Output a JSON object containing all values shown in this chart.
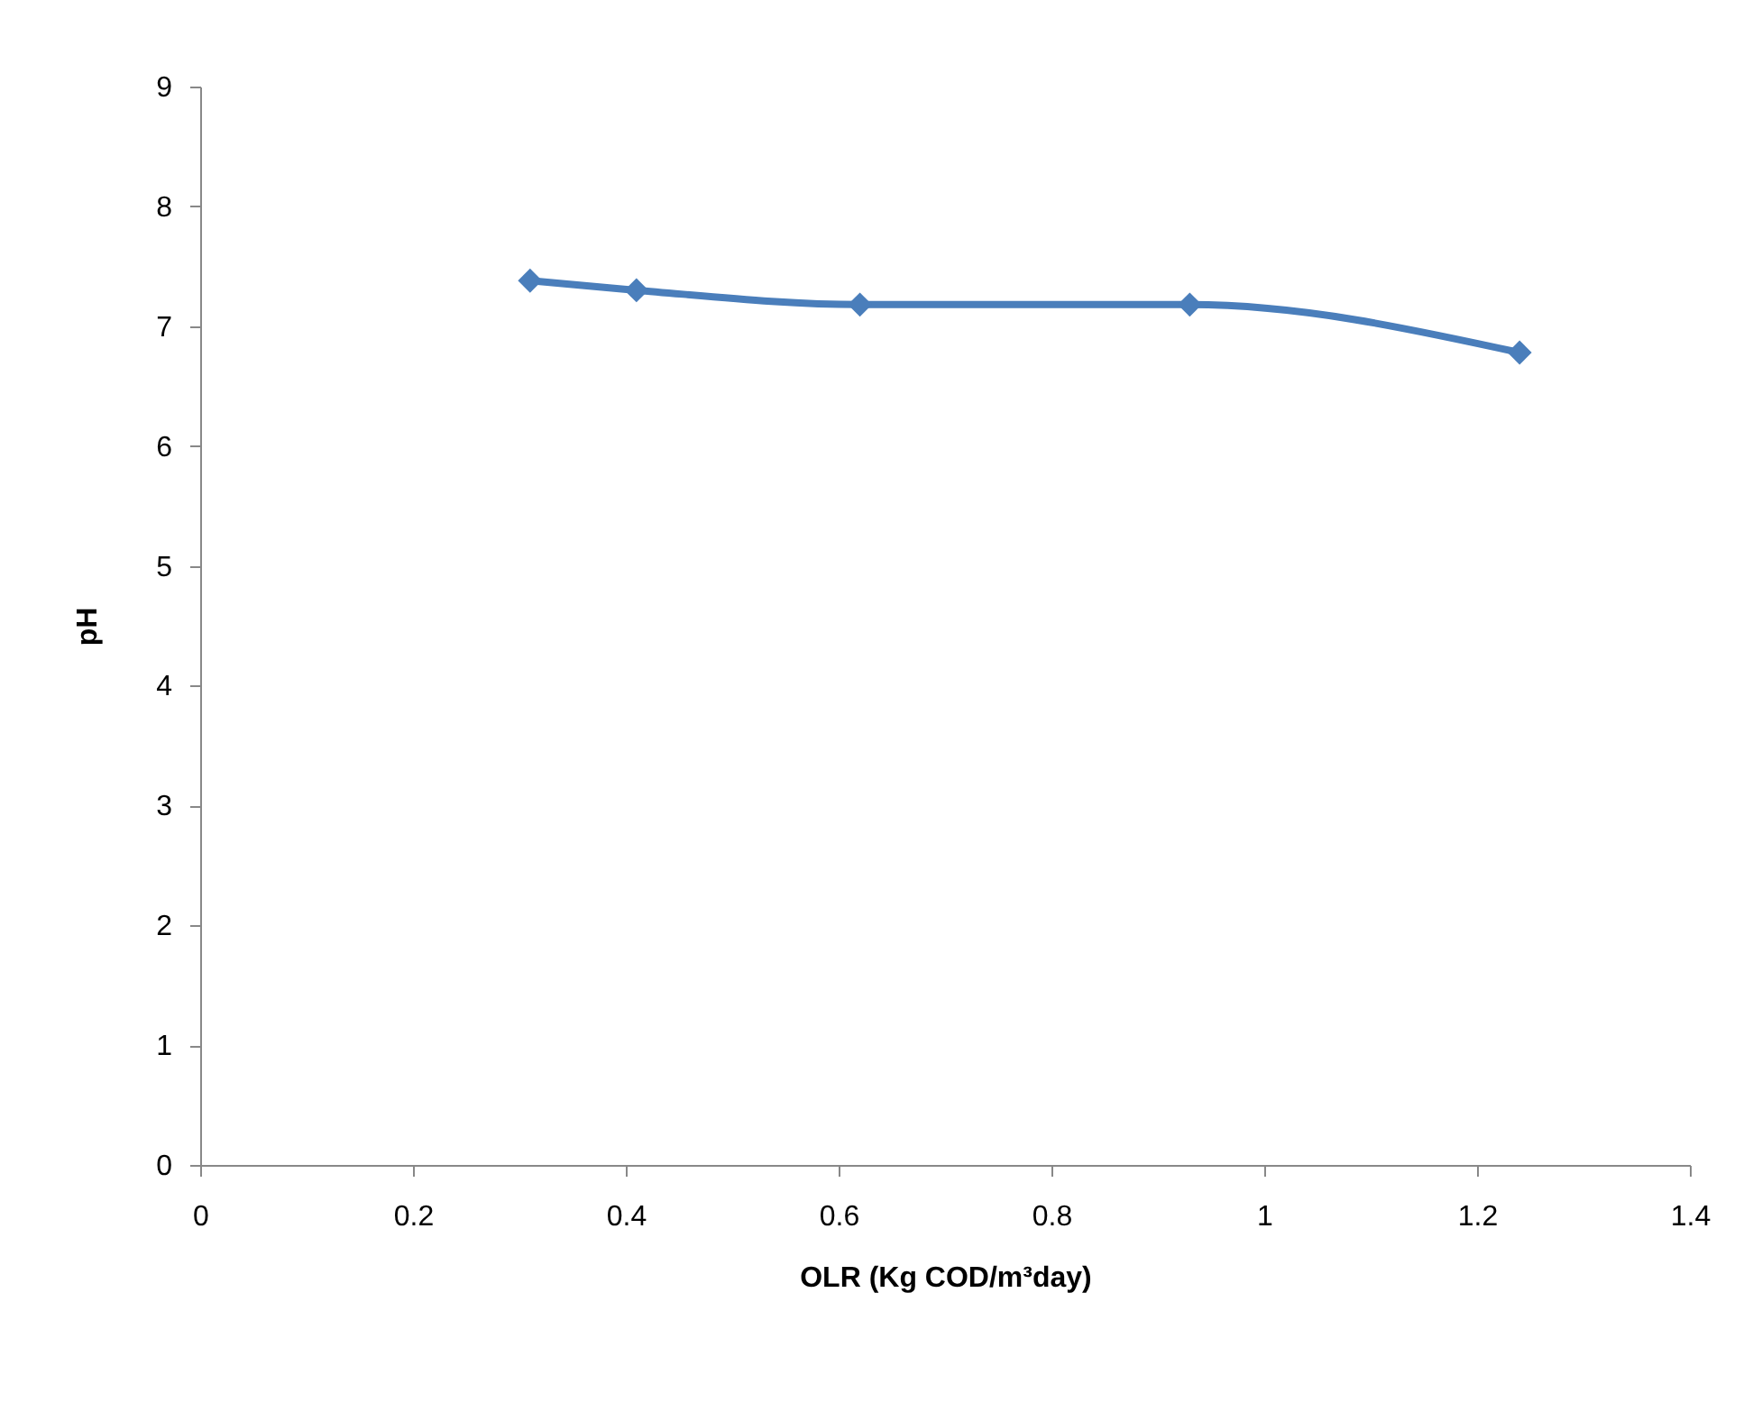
{
  "chart_data": {
    "type": "line",
    "xlabel": "OLR (Kg COD/m³day)",
    "ylabel": "pH",
    "x": [
      0.31,
      0.41,
      0.62,
      0.93,
      1.24
    ],
    "series": [
      {
        "color": "#4a7ebb",
        "values": [
          7.38,
          7.3,
          7.18,
          7.18,
          6.78
        ]
      }
    ],
    "xlim": [
      0,
      1.4
    ],
    "xticks": [
      0,
      0.2,
      0.4,
      0.6,
      0.8,
      1,
      1.2,
      1.4
    ],
    "ylim": [
      0,
      9
    ],
    "yticks": [
      0,
      1,
      2,
      3,
      4,
      5,
      6,
      7,
      8,
      9
    ],
    "grid": false,
    "marker": "diamond",
    "line_style": "solid"
  }
}
